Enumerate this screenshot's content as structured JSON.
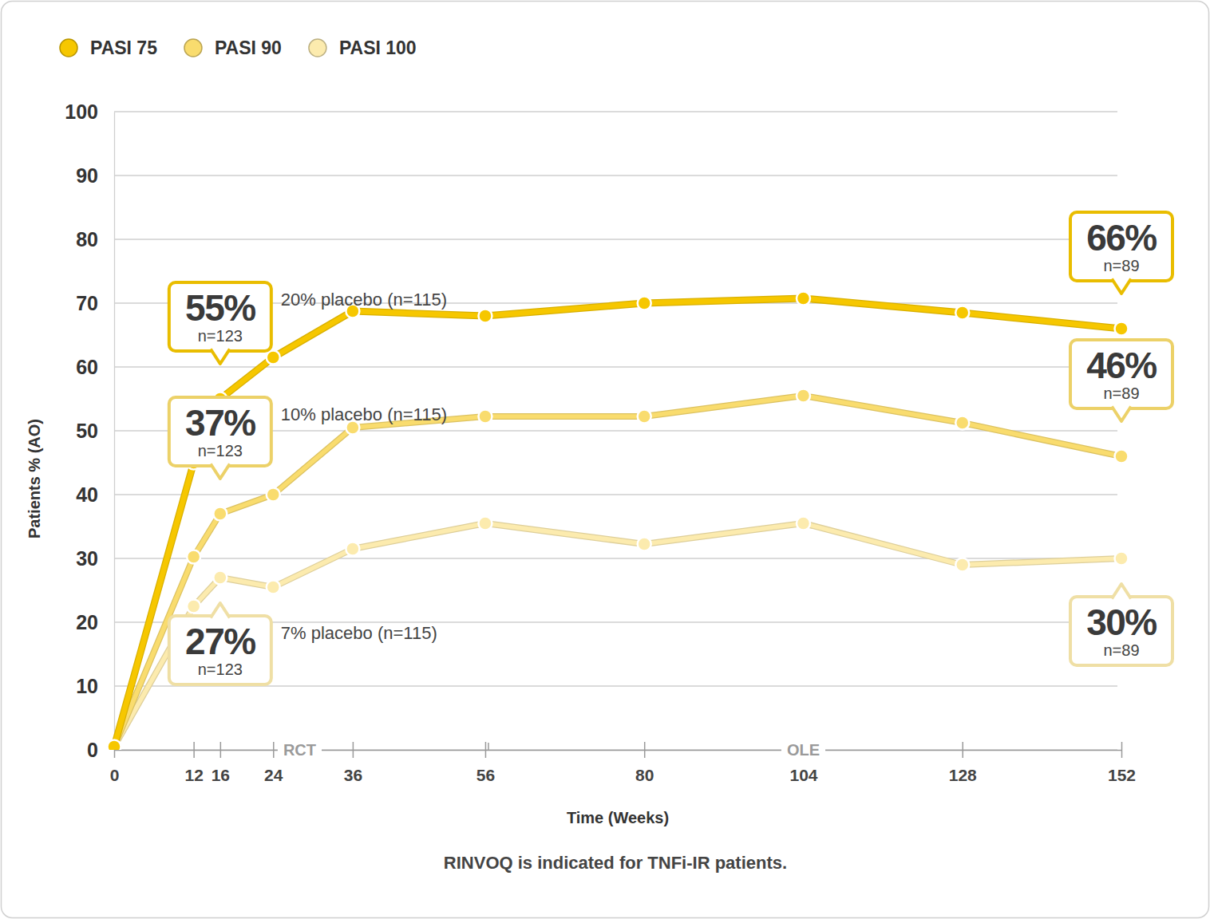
{
  "chart_data": {
    "type": "line",
    "x_label": "Time (Weeks)",
    "y_label": "Patients % (AO)",
    "footnote": "RINVOQ is indicated for TNFi-IR patients.",
    "x": [
      0,
      12,
      16,
      24,
      36,
      56,
      80,
      104,
      128,
      152
    ],
    "xlim": [
      0,
      152
    ],
    "xticks": [
      0,
      12,
      16,
      24,
      36,
      56,
      80,
      104,
      128,
      152
    ],
    "ylim": [
      0,
      100
    ],
    "yticks": [
      0,
      10,
      20,
      30,
      40,
      50,
      60,
      70,
      80,
      90,
      100
    ],
    "grid": true,
    "legend": "top-left",
    "marker": "circle",
    "phases": [
      {
        "label": "RCT",
        "x": [
          0,
          56
        ]
      },
      {
        "label": "OLE",
        "x": [
          56,
          152
        ]
      }
    ],
    "series": [
      {
        "name": "PASI 75",
        "color": "#F6C700",
        "values": [
          0.5,
          45,
          55,
          61.5,
          68.75,
          68,
          70,
          70.75,
          68.5,
          66
        ],
        "callouts": [
          {
            "x": 16,
            "value": 55,
            "label": "55%",
            "n": "n=123",
            "placebo": "20% placebo (n=115)"
          },
          {
            "x": 152,
            "value": 66,
            "label": "66%",
            "n": "n=89"
          }
        ]
      },
      {
        "name": "PASI 90",
        "color": "#F9DC6E",
        "values": [
          0.5,
          30.25,
          37,
          40,
          50.5,
          52.25,
          52.25,
          55.5,
          51.25,
          46
        ],
        "callouts": [
          {
            "x": 16,
            "value": 37,
            "label": "37%",
            "n": "n=123",
            "placebo": "10% placebo (n=115)"
          },
          {
            "x": 152,
            "value": 46,
            "label": "46%",
            "n": "n=89"
          }
        ]
      },
      {
        "name": "PASI 100",
        "color": "#FCEBAE",
        "values": [
          0.5,
          22.5,
          27,
          25.5,
          31.5,
          35.5,
          32.25,
          35.5,
          29,
          30
        ],
        "callouts": [
          {
            "x": 16,
            "value": 27,
            "label": "27%",
            "n": "n=123",
            "placebo": "7% placebo (n=115)"
          },
          {
            "x": 152,
            "value": 30,
            "label": "30%",
            "n": "n=89"
          }
        ]
      }
    ]
  }
}
